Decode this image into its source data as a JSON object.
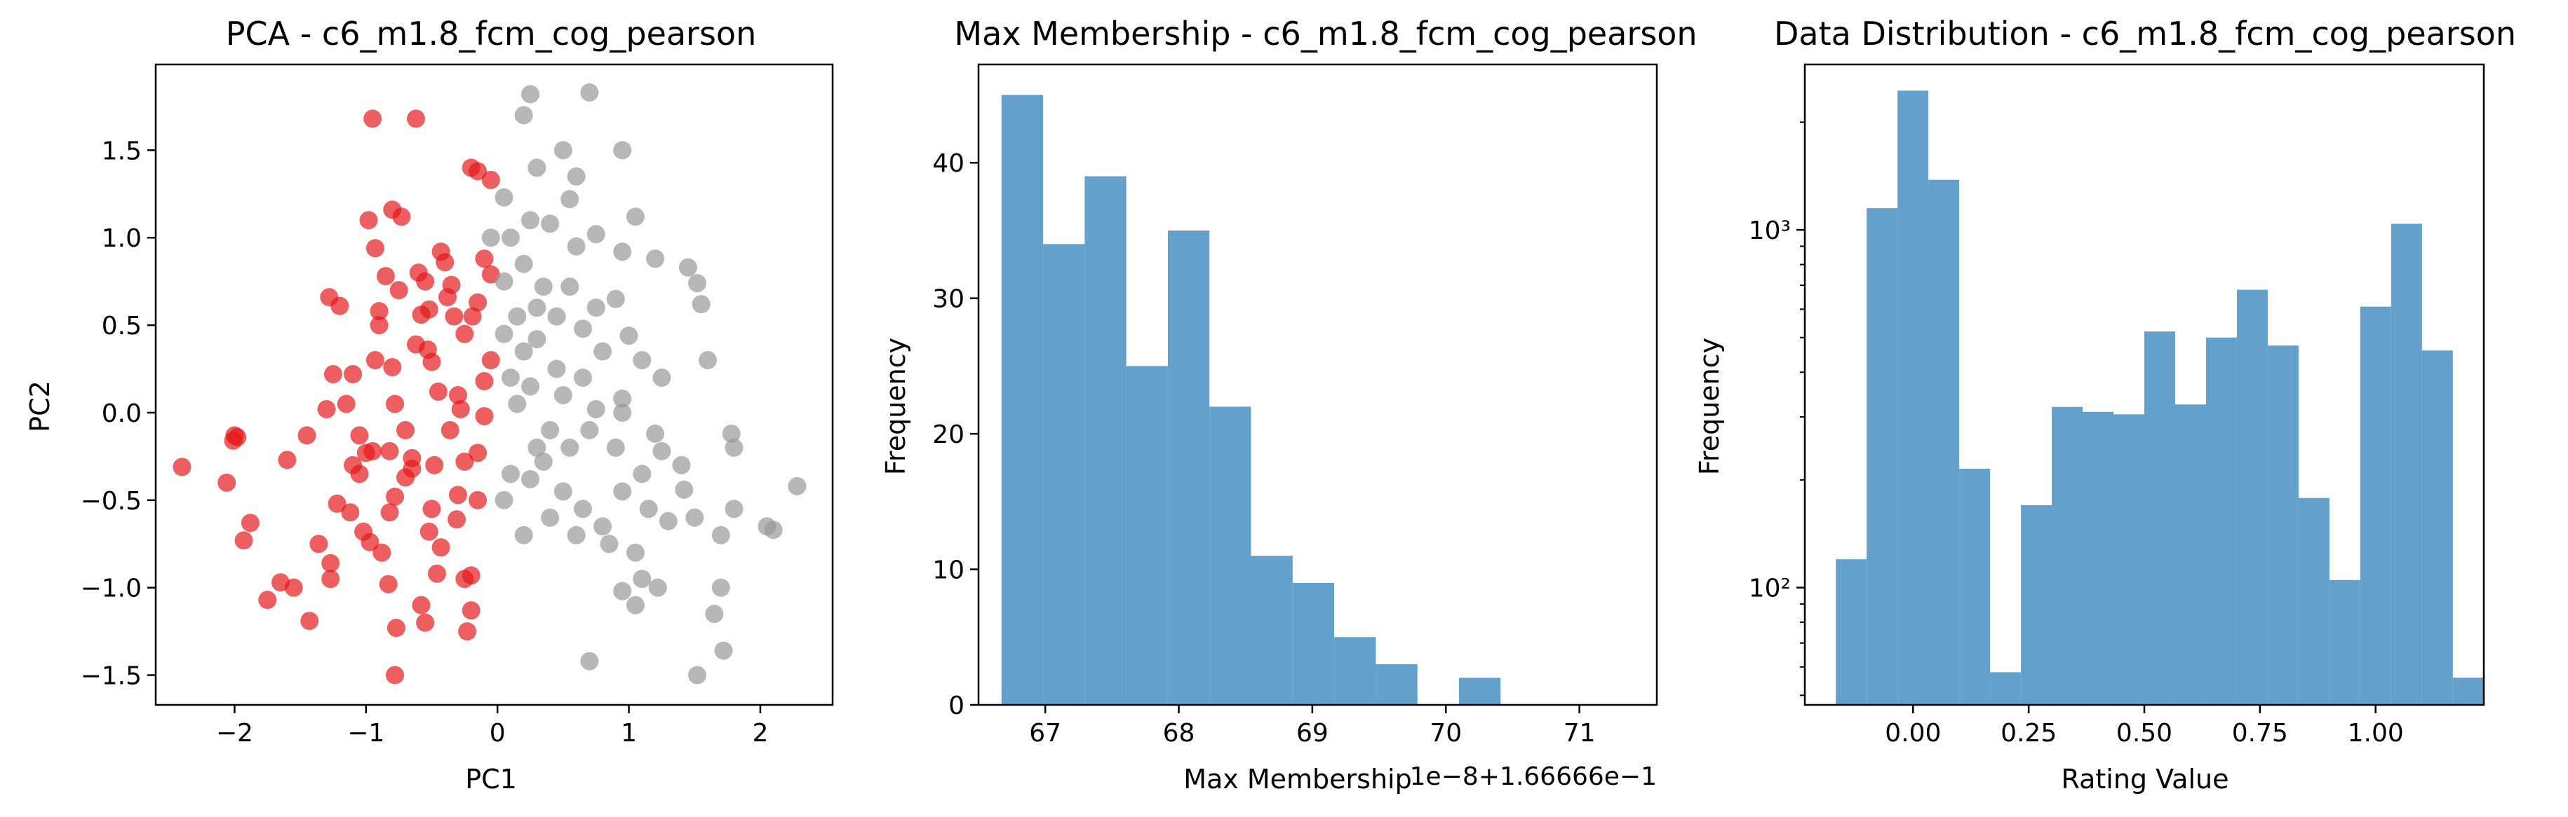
{
  "chart_data": [
    {
      "type": "scatter",
      "title": "PCA - c6_m1.8_fcm_cog_pearson",
      "xlabel": "PC1",
      "ylabel": "PC2",
      "xlim": [
        -2.6,
        2.55
      ],
      "ylim": [
        -1.67,
        1.99
      ],
      "xticks": [
        -2,
        -1,
        0,
        1,
        2
      ],
      "yticks": [
        -1.5,
        -1.0,
        -0.5,
        0.0,
        0.5,
        1.0,
        1.5
      ],
      "xtick_labels": [
        "−2",
        "−1",
        "0",
        "1",
        "2"
      ],
      "ytick_labels": [
        "−1.5",
        "−1.0",
        "−0.5",
        "0.0",
        "0.5",
        "1.0",
        "1.5"
      ],
      "grid": false,
      "colors": {
        "cluster_a": "#e41a1c",
        "cluster_b": "#999999"
      },
      "series": [
        {
          "points": [
            [
              -2.4,
              -0.31
            ],
            [
              -2.0,
              -0.13
            ],
            [
              -2.01,
              -0.16
            ],
            [
              -1.98,
              -0.14
            ],
            [
              -2.06,
              -0.4
            ],
            [
              -1.93,
              -0.73
            ],
            [
              -1.88,
              -0.63
            ],
            [
              -1.75,
              -1.07
            ],
            [
              -1.65,
              -0.97
            ],
            [
              -1.55,
              -1.0
            ],
            [
              -1.6,
              -0.27
            ],
            [
              -1.45,
              -0.13
            ],
            [
              -1.36,
              -0.75
            ],
            [
              -1.43,
              -1.19
            ],
            [
              -1.27,
              -0.86
            ],
            [
              -1.27,
              -0.95
            ],
            [
              -1.3,
              0.02
            ],
            [
              -1.25,
              0.22
            ],
            [
              -1.15,
              0.05
            ],
            [
              -1.28,
              0.66
            ],
            [
              -1.2,
              0.61
            ],
            [
              -1.1,
              0.22
            ],
            [
              -1.05,
              -0.13
            ],
            [
              -1.1,
              -0.3
            ],
            [
              -1.05,
              -0.35
            ],
            [
              -1.0,
              -0.23
            ],
            [
              -0.95,
              -0.22
            ],
            [
              -0.93,
              0.3
            ],
            [
              -0.9,
              0.58
            ],
            [
              -0.93,
              0.94
            ],
            [
              -0.98,
              1.1
            ],
            [
              -0.85,
              0.78
            ],
            [
              -0.9,
              0.5
            ],
            [
              -0.8,
              1.16
            ],
            [
              -0.73,
              1.12
            ],
            [
              -0.75,
              0.7
            ],
            [
              -0.78,
              0.05
            ],
            [
              -0.82,
              -0.22
            ],
            [
              -0.78,
              -0.48
            ],
            [
              -0.82,
              -0.57
            ],
            [
              -0.88,
              -0.8
            ],
            [
              -0.83,
              -0.98
            ],
            [
              -0.77,
              -1.23
            ],
            [
              -0.7,
              -0.37
            ],
            [
              -0.65,
              -0.32
            ],
            [
              -0.6,
              0.8
            ],
            [
              -0.55,
              0.75
            ],
            [
              -0.58,
              0.56
            ],
            [
              -0.53,
              0.36
            ],
            [
              -0.5,
              0.29
            ],
            [
              -0.48,
              -0.3
            ],
            [
              -0.5,
              -0.55
            ],
            [
              -0.52,
              -0.68
            ],
            [
              -0.43,
              -0.77
            ],
            [
              -0.46,
              -0.92
            ],
            [
              -0.55,
              -1.2
            ],
            [
              -0.58,
              -1.1
            ],
            [
              -0.43,
              0.92
            ],
            [
              -0.4,
              0.86
            ],
            [
              -0.38,
              0.66
            ],
            [
              -0.33,
              0.55
            ],
            [
              -0.3,
              0.1
            ],
            [
              -0.28,
              0.02
            ],
            [
              -0.25,
              -0.28
            ],
            [
              -0.3,
              -0.47
            ],
            [
              -0.23,
              -1.25
            ],
            [
              -0.2,
              -1.13
            ],
            [
              -0.15,
              -0.23
            ],
            [
              -0.1,
              -0.02
            ],
            [
              -0.15,
              0.63
            ],
            [
              -0.1,
              0.88
            ],
            [
              -0.05,
              0.79
            ],
            [
              -0.2,
              1.4
            ],
            [
              -0.15,
              1.38
            ],
            [
              -0.05,
              1.33
            ],
            [
              -0.62,
              1.68
            ],
            [
              -0.95,
              1.68
            ],
            [
              -0.78,
              -1.5
            ],
            [
              -1.02,
              -0.68
            ],
            [
              -1.12,
              -0.57
            ],
            [
              -1.22,
              -0.52
            ],
            [
              -0.97,
              -0.74
            ],
            [
              -0.8,
              0.26
            ],
            [
              -0.62,
              0.39
            ],
            [
              -0.52,
              0.59
            ],
            [
              -0.35,
              0.73
            ],
            [
              -0.19,
              0.55
            ],
            [
              -0.1,
              0.18
            ],
            [
              -0.15,
              -0.5
            ],
            [
              -0.31,
              -0.61
            ],
            [
              -0.2,
              -0.93
            ],
            [
              -0.25,
              -0.95
            ],
            [
              -0.36,
              -0.1
            ],
            [
              -0.65,
              -0.26
            ],
            [
              -0.05,
              0.3
            ],
            [
              -0.25,
              0.45
            ],
            [
              -0.45,
              0.12
            ],
            [
              -0.7,
              -0.1
            ]
          ]
        },
        {
          "points": [
            [
              0.25,
              1.82
            ],
            [
              0.2,
              1.7
            ],
            [
              0.7,
              1.83
            ],
            [
              0.5,
              1.5
            ],
            [
              0.95,
              1.5
            ],
            [
              0.3,
              1.4
            ],
            [
              0.6,
              1.35
            ],
            [
              0.05,
              1.23
            ],
            [
              -0.05,
              1.0
            ],
            [
              0.1,
              1.0
            ],
            [
              0.25,
              1.1
            ],
            [
              0.4,
              1.08
            ],
            [
              0.55,
              1.22
            ],
            [
              0.75,
              1.02
            ],
            [
              1.05,
              1.12
            ],
            [
              0.95,
              0.92
            ],
            [
              1.2,
              0.88
            ],
            [
              1.45,
              0.83
            ],
            [
              1.52,
              0.74
            ],
            [
              1.55,
              0.62
            ],
            [
              0.2,
              0.85
            ],
            [
              0.05,
              0.75
            ],
            [
              0.35,
              0.72
            ],
            [
              0.55,
              0.72
            ],
            [
              0.15,
              0.55
            ],
            [
              0.45,
              0.55
            ],
            [
              0.75,
              0.6
            ],
            [
              0.65,
              0.48
            ],
            [
              0.05,
              0.45
            ],
            [
              0.3,
              0.42
            ],
            [
              0.45,
              0.25
            ],
            [
              0.2,
              0.35
            ],
            [
              0.1,
              0.2
            ],
            [
              0.25,
              0.15
            ],
            [
              0.5,
              0.1
            ],
            [
              0.75,
              0.02
            ],
            [
              0.95,
              0.08
            ],
            [
              1.1,
              0.3
            ],
            [
              1.25,
              0.2
            ],
            [
              1.6,
              0.3
            ],
            [
              1.78,
              -0.12
            ],
            [
              1.8,
              -0.2
            ],
            [
              0.1,
              -0.35
            ],
            [
              0.25,
              -0.38
            ],
            [
              0.35,
              -0.28
            ],
            [
              0.55,
              -0.2
            ],
            [
              0.7,
              -0.1
            ],
            [
              0.95,
              0.0
            ],
            [
              1.2,
              -0.12
            ],
            [
              1.25,
              -0.22
            ],
            [
              1.1,
              -0.35
            ],
            [
              0.95,
              -0.45
            ],
            [
              1.15,
              -0.55
            ],
            [
              1.3,
              -0.62
            ],
            [
              1.5,
              -0.6
            ],
            [
              1.7,
              -0.7
            ],
            [
              1.42,
              -0.44
            ],
            [
              1.8,
              -0.55
            ],
            [
              0.5,
              -0.45
            ],
            [
              0.65,
              -0.55
            ],
            [
              0.8,
              -0.65
            ],
            [
              0.6,
              -0.7
            ],
            [
              0.85,
              -0.75
            ],
            [
              1.05,
              -0.8
            ],
            [
              1.1,
              -0.95
            ],
            [
              0.95,
              -1.02
            ],
            [
              1.05,
              -1.1
            ],
            [
              1.22,
              -1.0
            ],
            [
              1.7,
              -1.0
            ],
            [
              1.65,
              -1.15
            ],
            [
              1.72,
              -1.36
            ],
            [
              1.52,
              -1.5
            ],
            [
              0.7,
              -1.42
            ],
            [
              2.05,
              -0.65
            ],
            [
              2.1,
              -0.67
            ],
            [
              2.28,
              -0.42
            ],
            [
              0.2,
              -0.7
            ],
            [
              0.4,
              -0.6
            ],
            [
              0.05,
              -0.5
            ],
            [
              0.15,
              0.05
            ],
            [
              0.9,
              0.65
            ],
            [
              1.0,
              0.44
            ],
            [
              0.3,
              0.6
            ],
            [
              0.6,
              0.95
            ],
            [
              0.8,
              0.35
            ],
            [
              0.65,
              0.2
            ],
            [
              0.4,
              -0.1
            ],
            [
              0.9,
              -0.2
            ],
            [
              1.4,
              -0.3
            ],
            [
              0.3,
              -0.2
            ]
          ]
        }
      ]
    },
    {
      "type": "bar",
      "title": "Max Membership - c6_m1.8_fcm_cog_pearson",
      "xlabel": "Max Membership",
      "ylabel": "Frequency",
      "offset_text": "1e−8+1.66666e−1",
      "xlim": [
        66.5,
        71.58
      ],
      "ylim": [
        0,
        47.25
      ],
      "xticks": [
        67,
        68,
        69,
        70,
        71
      ],
      "yticks": [
        0,
        10,
        20,
        30,
        40
      ],
      "bin_start": 66.672,
      "bin_width": 0.3115,
      "values": [
        45,
        34,
        39,
        25,
        35,
        22,
        11,
        9,
        5,
        3,
        0,
        2
      ],
      "color": "#5b9bc9"
    },
    {
      "type": "bar",
      "title": "Data Distribution - c6_m1.8_fcm_cog_pearson",
      "xlabel": "Rating Value",
      "ylabel": "Frequency",
      "yscale": "log",
      "xlim": [
        -0.234,
        1.234
      ],
      "ylim": [
        47,
        2900
      ],
      "xticks": [
        0.0,
        0.25,
        0.5,
        0.75,
        1.0
      ],
      "xtick_labels": [
        "0.00",
        "0.25",
        "0.50",
        "0.75",
        "1.00"
      ],
      "yticks": [
        100,
        1000
      ],
      "ytick_labels": [
        "10²",
        "10³"
      ],
      "bin_start": -0.167,
      "bin_width": 0.0667,
      "values": [
        120,
        1150,
        2450,
        1380,
        215,
        58,
        170,
        320,
        310,
        305,
        520,
        325,
        500,
        680,
        475,
        178,
        105,
        610,
        1040,
        460,
        56
      ],
      "color": "#5b9bc9"
    }
  ]
}
